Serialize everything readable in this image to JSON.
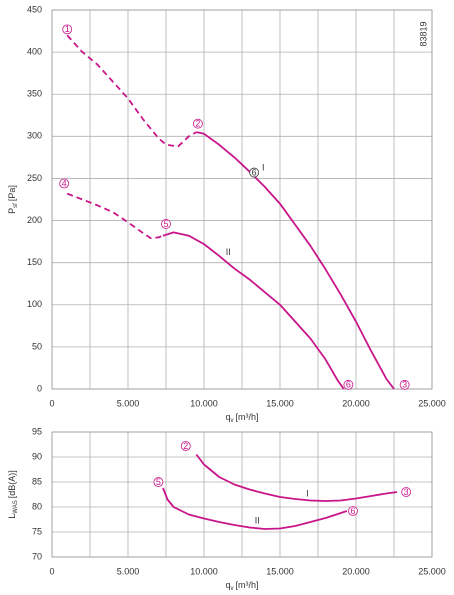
{
  "chart_data": [
    {
      "type": "line",
      "id_label": "83819",
      "ylabel": "P",
      "ylabel_sub": "sf",
      "ylabel_unit": "[Pa]",
      "xlabel": "q",
      "xlabel_sub": "v",
      "xlabel_unit": "[m³/h]",
      "xlim": [
        0,
        25000
      ],
      "xticks": [
        0,
        {
          "value": 5000,
          "label": "5.000"
        },
        {
          "value": 10000,
          "label": "10.000"
        },
        {
          "value": 15000,
          "label": "15.000"
        },
        {
          "value": 20000,
          "label": "20.000"
        },
        {
          "value": 25000,
          "label": "25.000"
        }
      ],
      "x_minor_ticks": [
        2500,
        7500,
        12500,
        17500,
        22500
      ],
      "ylim": [
        0,
        450
      ],
      "yticks": [
        0,
        50,
        100,
        150,
        200,
        250,
        300,
        350,
        400,
        450
      ],
      "grid": true,
      "series": [
        {
          "color": "#c8168a",
          "line_style": "dashed",
          "x": [
            1000,
            2000,
            3000,
            4000,
            5000,
            6000,
            7000,
            7500,
            8300,
            9000,
            9500
          ],
          "values": [
            420,
            400,
            385,
            365,
            345,
            320,
            298,
            290,
            288,
            300,
            305
          ]
        },
        {
          "name": "I",
          "color": "#c8168a",
          "line_style": "solid",
          "x": [
            9500,
            10000,
            11000,
            12000,
            13000,
            14000,
            15000,
            16000,
            17000,
            18000,
            19000,
            20000,
            21000,
            22000,
            22500
          ],
          "values": [
            305,
            303,
            290,
            275,
            258,
            240,
            220,
            195,
            170,
            142,
            112,
            80,
            45,
            12,
            0
          ]
        },
        {
          "color": "#c8168a",
          "line_style": "dashed",
          "x": [
            1000,
            2000,
            3000,
            4000,
            5000,
            6000,
            6500,
            7000,
            7300
          ],
          "values": [
            232,
            225,
            218,
            210,
            198,
            185,
            179,
            180,
            182
          ]
        },
        {
          "name": "II",
          "color": "#c8168a",
          "line_style": "solid",
          "x": [
            7300,
            8000,
            9000,
            10000,
            11000,
            12000,
            13000,
            14000,
            15000,
            16000,
            17000,
            18000,
            18800,
            19200
          ],
          "values": [
            182,
            186,
            182,
            172,
            158,
            143,
            130,
            115,
            100,
            80,
            60,
            35,
            10,
            0
          ]
        }
      ],
      "series_label_pos": [
        null,
        {
          "x": 13900,
          "y": 262
        },
        null,
        {
          "x": 11600,
          "y": 162
        }
      ],
      "annotations": [
        {
          "text": "1",
          "x": 1000,
          "y": 427,
          "color": "#c8168a"
        },
        {
          "text": "2",
          "x": 9600,
          "y": 315,
          "color": "#c8168a"
        },
        {
          "text": "3",
          "x": 23200,
          "y": 5,
          "color": "#c8168a"
        },
        {
          "text": "4",
          "x": 800,
          "y": 244,
          "color": "#c8168a"
        },
        {
          "text": "5",
          "x": 7500,
          "y": 196,
          "color": "#c8168a"
        },
        {
          "text": "6",
          "x": 19500,
          "y": 5,
          "color": "#c8168a"
        },
        {
          "text": "6",
          "x": 13300,
          "y": 257,
          "color": "#333333"
        }
      ]
    },
    {
      "type": "line",
      "ylabel": "L",
      "ylabel_sub": "WAS",
      "ylabel_unit": "[dB(A)]",
      "xlabel": "q",
      "xlabel_sub": "v",
      "xlabel_unit": "[m³/h]",
      "xlim": [
        0,
        25000
      ],
      "xticks": [
        0,
        {
          "value": 5000,
          "label": "5.000"
        },
        {
          "value": 10000,
          "label": "10.000"
        },
        {
          "value": 15000,
          "label": "15.000"
        },
        {
          "value": 20000,
          "label": "20.000"
        },
        {
          "value": 25000,
          "label": "25.000"
        }
      ],
      "x_minor_ticks": [
        2500,
        7500,
        12500,
        17500,
        22500
      ],
      "ylim": [
        70,
        95
      ],
      "yticks": [
        70,
        75,
        80,
        85,
        90,
        95
      ],
      "grid": true,
      "series": [
        {
          "name": "I",
          "color": "#c8168a",
          "line_style": "solid",
          "x": [
            9500,
            10000,
            11000,
            12000,
            13000,
            14000,
            15000,
            16000,
            17000,
            18000,
            19000,
            20000,
            21000,
            22000,
            22700
          ],
          "values": [
            90.5,
            88.5,
            86,
            84.5,
            83.5,
            82.7,
            82,
            81.6,
            81.3,
            81.2,
            81.3,
            81.7,
            82.2,
            82.7,
            83
          ]
        },
        {
          "name": "II",
          "color": "#c8168a",
          "line_style": "solid",
          "x": [
            7300,
            7600,
            8000,
            9000,
            10000,
            11000,
            12000,
            13000,
            14000,
            15000,
            16000,
            17000,
            18000,
            19000,
            19400
          ],
          "values": [
            83.8,
            81.5,
            80,
            78.5,
            77.7,
            77,
            76.4,
            75.9,
            75.6,
            75.7,
            76.2,
            77,
            77.8,
            78.8,
            79.2
          ]
        }
      ],
      "series_label_pos": [
        {
          "x": 16800,
          "y": 82.6
        },
        {
          "x": 13500,
          "y": 77.2
        }
      ],
      "annotations": [
        {
          "text": "2",
          "x": 8800,
          "y": 92.2,
          "color": "#c8168a"
        },
        {
          "text": "3",
          "x": 23300,
          "y": 83,
          "color": "#c8168a"
        },
        {
          "text": "5",
          "x": 7000,
          "y": 85,
          "color": "#c8168a"
        },
        {
          "text": "6",
          "x": 19800,
          "y": 79.2,
          "color": "#c8168a"
        }
      ]
    }
  ]
}
